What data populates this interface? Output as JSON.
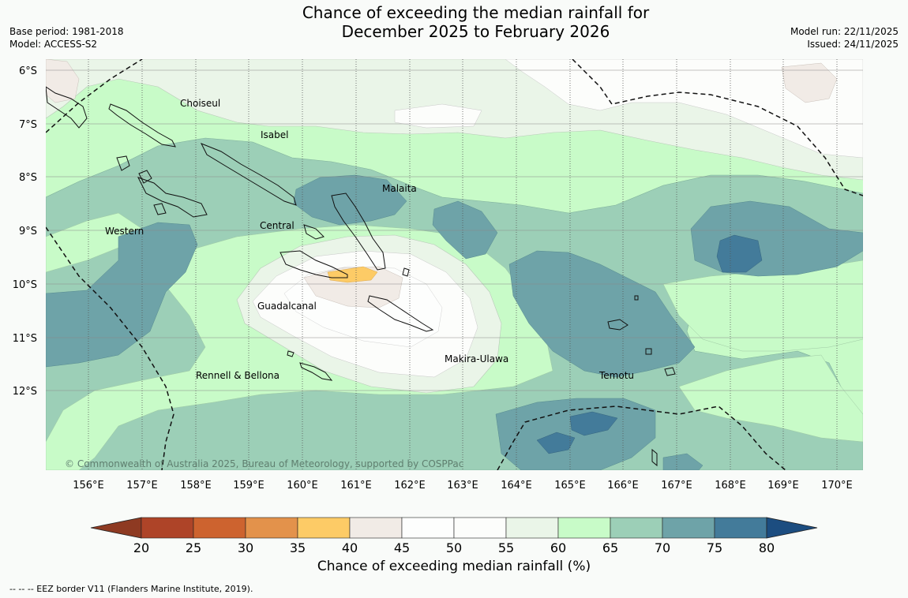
{
  "title": {
    "line1": "Chance of exceeding the median rainfall for",
    "line2": "December 2025 to February 2026"
  },
  "meta_left": {
    "base_period": "Base period: 1981-2018",
    "model": "Model: ACCESS-S2"
  },
  "meta_right": {
    "model_run": "Model run: 22/11/2025",
    "issued": "Issued: 24/11/2025"
  },
  "map": {
    "lon_labels": [
      "156°E",
      "157°E",
      "158°E",
      "159°E",
      "160°E",
      "161°E",
      "162°E",
      "163°E",
      "164°E",
      "165°E",
      "166°E",
      "167°E",
      "168°E",
      "169°E",
      "170°E"
    ],
    "lat_labels": [
      "6°S",
      "7°S",
      "8°S",
      "9°S",
      "10°S",
      "11°S",
      "12°S"
    ],
    "region_labels": [
      "Choiseul",
      "Isabel",
      "Malaita",
      "Central",
      "Western",
      "Guadalcanal",
      "Makira-Ulawa",
      "Temotu",
      "Rennell & Bellona"
    ],
    "copyright": "© Commonwealth of Australia 2025, Bureau of Meteorology, supported by COSPPac"
  },
  "legend": {
    "ticks": [
      "20",
      "25",
      "30",
      "35",
      "40",
      "45",
      "50",
      "55",
      "60",
      "65",
      "70",
      "75",
      "80"
    ],
    "colors": [
      "#ae4428",
      "#cd632f",
      "#e3924b",
      "#fdcb66",
      "#f1ebe6",
      "#fdfefd",
      "#fcfdfb",
      "#eaf5e8",
      "#c8fbc8",
      "#9ccfb7",
      "#6ea3a8",
      "#437b9a"
    ],
    "low_color": "#8e3a22",
    "high_color": "#1c4d80",
    "title": "Chance of exceeding median rainfall (%)"
  },
  "footnote": "--  --  -- EEZ border V11 (Flanders Marine Institute, 2019)."
}
